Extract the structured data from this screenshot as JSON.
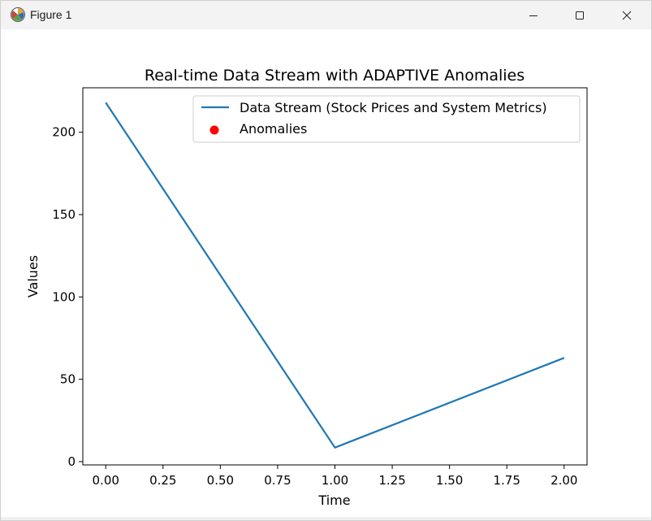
{
  "window": {
    "title": "Figure 1",
    "icon": "matplotlib-figure-icon",
    "controls": [
      "minimize-icon",
      "maximize-icon",
      "close-icon"
    ]
  },
  "chart_data": {
    "type": "line",
    "title": "Real-time Data Stream with ADAPTIVE Anomalies",
    "xlabel": "Time",
    "ylabel": "Values",
    "xlim": [
      -0.1,
      2.1
    ],
    "ylim": [
      -2,
      227
    ],
    "xticks": [
      "0.00",
      "0.25",
      "0.50",
      "0.75",
      "1.00",
      "1.25",
      "1.50",
      "1.75",
      "2.00"
    ],
    "yticks": [
      "0",
      "50",
      "100",
      "150",
      "200"
    ],
    "grid": false,
    "legend_position": "top-right",
    "series": [
      {
        "name": "Data Stream (Stock Prices and System Metrics)",
        "kind": "line",
        "color": "#1f77b4",
        "x": [
          0,
          1,
          2
        ],
        "y": [
          218,
          8.5,
          63
        ]
      },
      {
        "name": "Anomalies",
        "kind": "scatter",
        "color": "#ff0000",
        "x": [],
        "y": []
      }
    ]
  }
}
